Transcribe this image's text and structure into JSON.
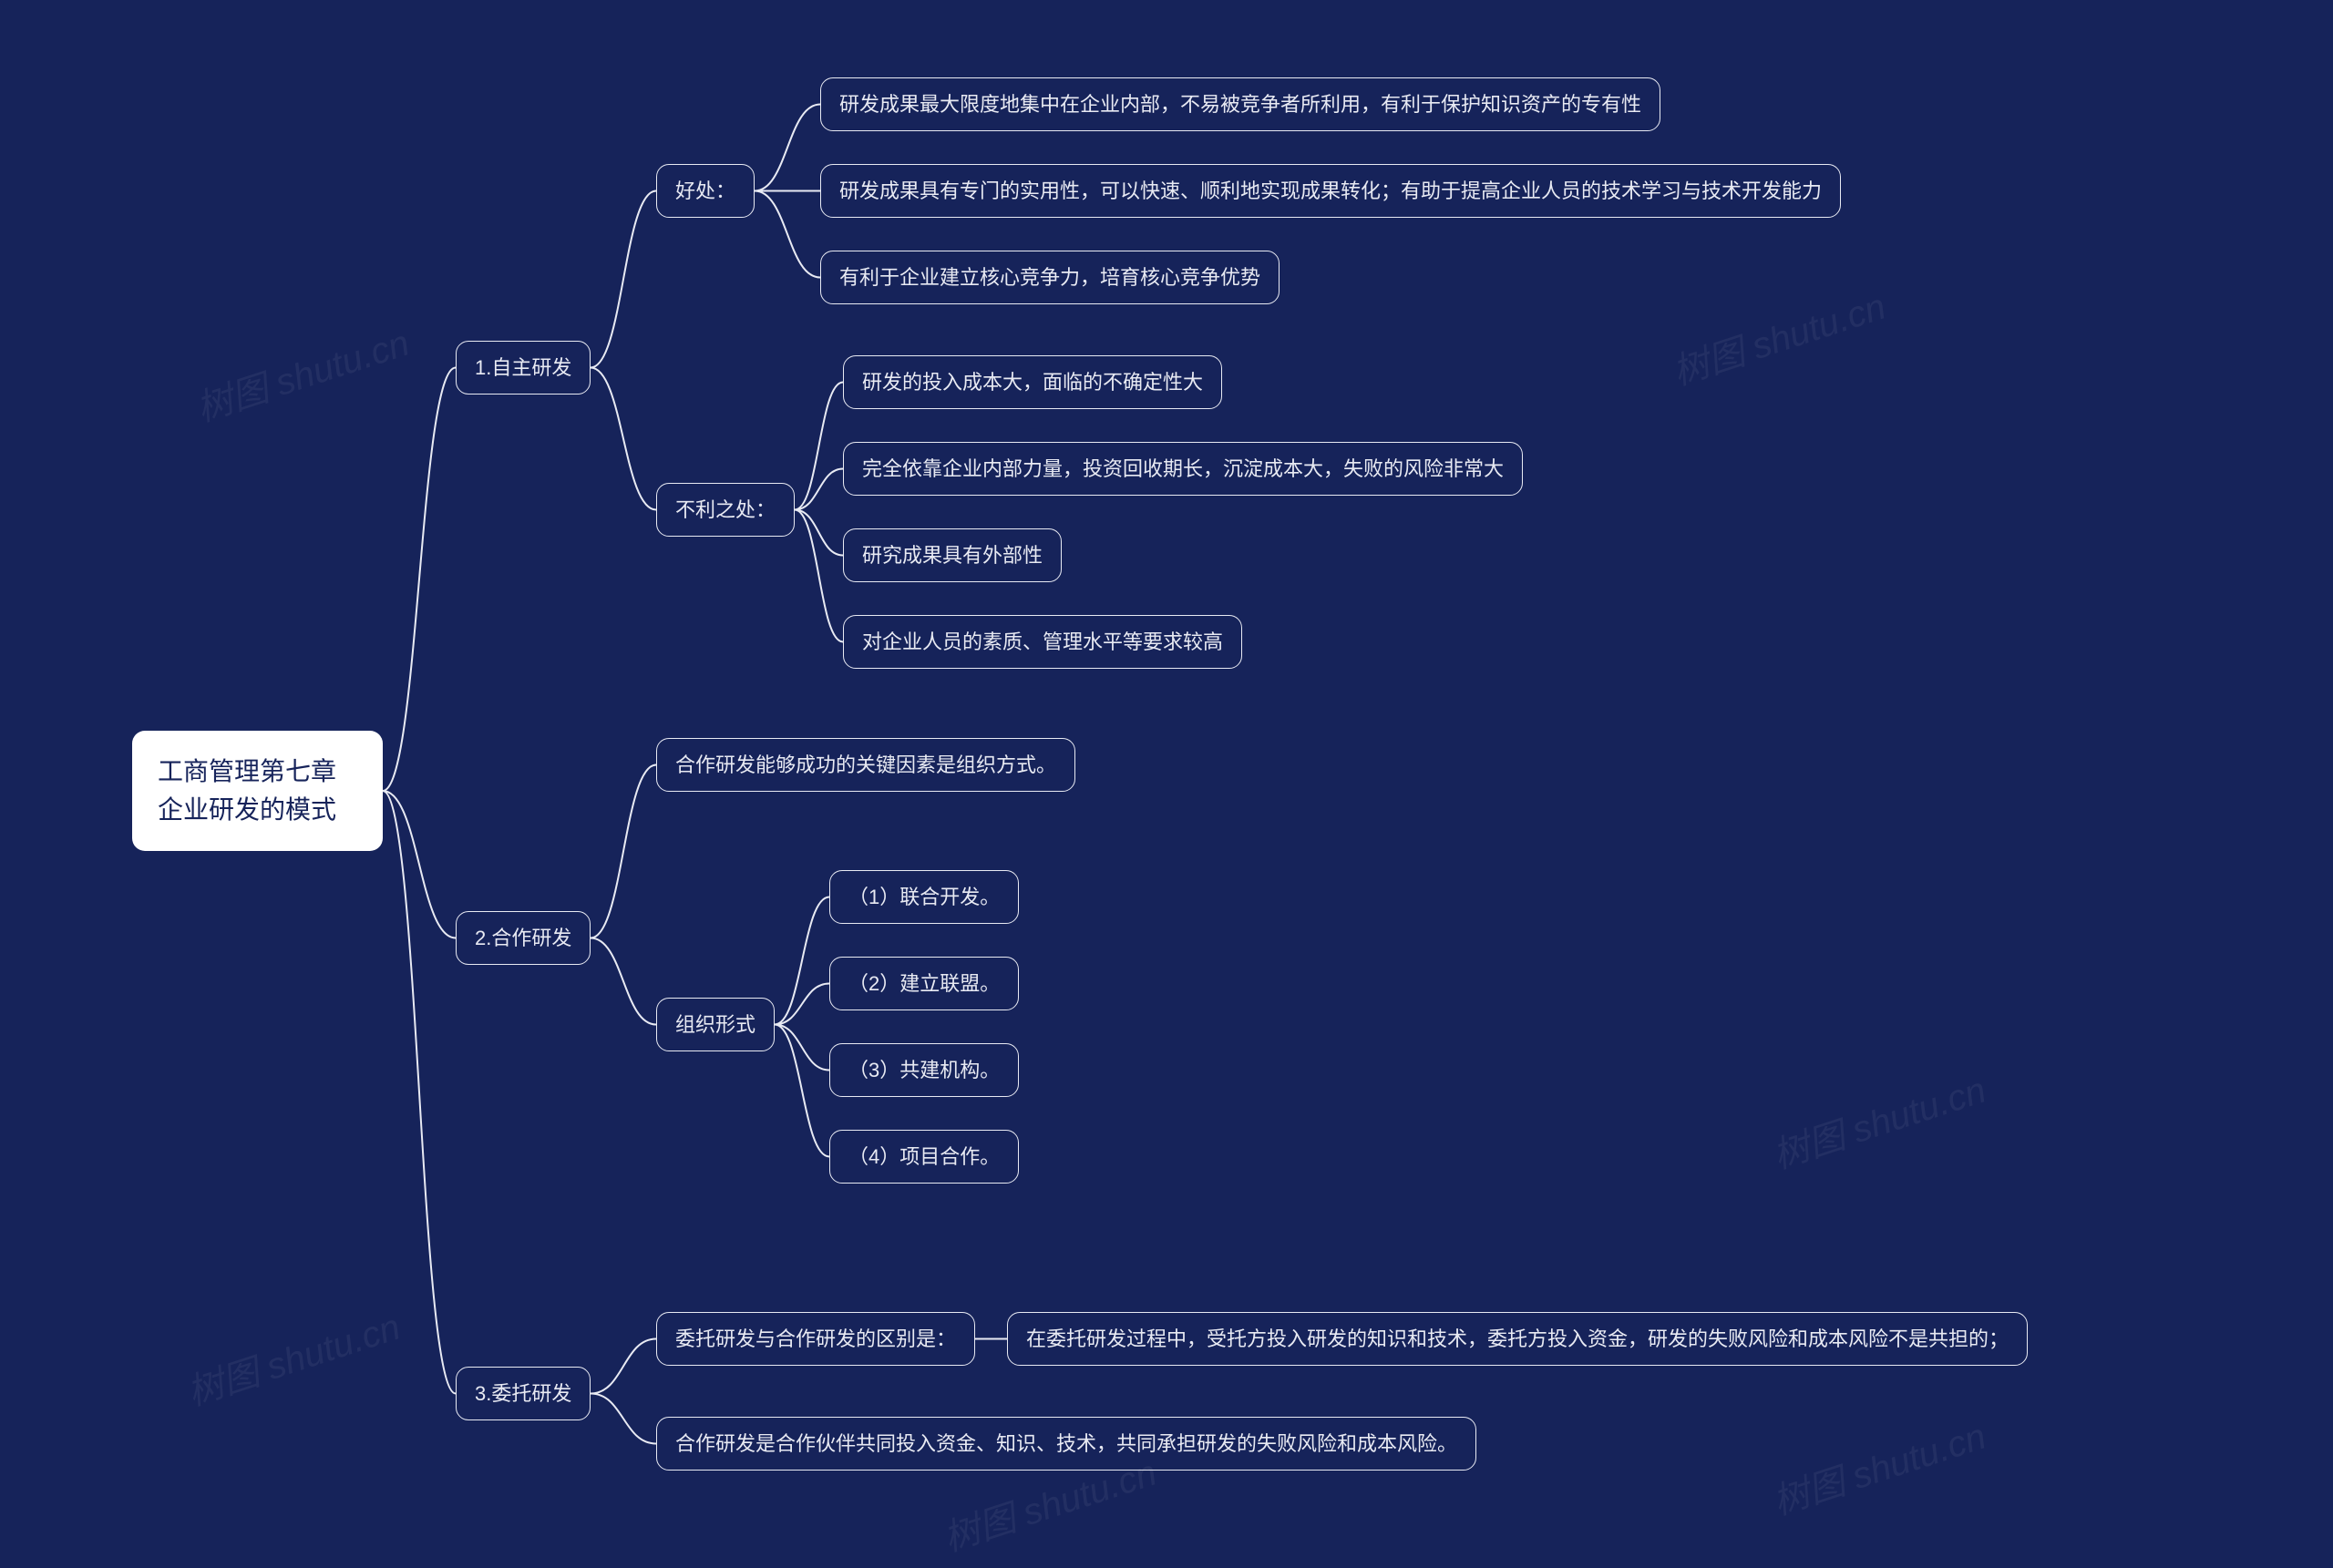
{
  "background_color": "#16235a",
  "node_border_color": "#e8eaf3",
  "node_text_color": "#e8eaf3",
  "root_bg_color": "#ffffff",
  "root_text_color": "#16235a",
  "connector_color": "#e8eaf3",
  "connector_width": 2,
  "node_border_radius": 14,
  "node_fontsize": 22,
  "root_fontsize": 28,
  "watermark_text": "树图 shutu.cn",
  "watermark_color": "rgba(255,255,255,0.06)",
  "root": {
    "line1": "工商管理第七章",
    "line2": "企业研发的模式"
  },
  "b1": {
    "label": "1.自主研发"
  },
  "b2": {
    "label": "2.合作研发"
  },
  "b3": {
    "label": "3.委托研发"
  },
  "b1_a": {
    "label": "好处："
  },
  "b1_b": {
    "label": "不利之处："
  },
  "b1_a1": {
    "label": "研发成果最大限度地集中在企业内部，不易被竞争者所利用，有利于保护知识资产的专有性"
  },
  "b1_a2": {
    "label": "研发成果具有专门的实用性，可以快速、顺利地实现成果转化；有助于提高企业人员的技术学习与技术开发能力"
  },
  "b1_a3": {
    "label": "有利于企业建立核心竞争力，培育核心竞争优势"
  },
  "b1_b1": {
    "label": "研发的投入成本大，面临的不确定性大"
  },
  "b1_b2": {
    "label": "完全依靠企业内部力量，投资回收期长，沉淀成本大，失败的风险非常大"
  },
  "b1_b3": {
    "label": "研究成果具有外部性"
  },
  "b1_b4": {
    "label": "对企业人员的素质、管理水平等要求较高"
  },
  "b2_a": {
    "label": "合作研发能够成功的关键因素是组织方式。"
  },
  "b2_b": {
    "label": "组织形式"
  },
  "b2_b1": {
    "label": "（1）联合开发。"
  },
  "b2_b2": {
    "label": "（2）建立联盟。"
  },
  "b2_b3": {
    "label": "（3）共建机构。"
  },
  "b2_b4": {
    "label": "（4）项目合作。"
  },
  "b3_a": {
    "label": "委托研发与合作研发的区别是："
  },
  "b3_a1": {
    "label": "在委托研发过程中，受托方投入研发的知识和技术，委托方投入资金，研发的失败风险和成本风险不是共担的；"
  },
  "b3_b": {
    "label": "合作研发是合作伙伴共同投入资金、知识、技术，共同承担研发的失败风险和成本风险。"
  }
}
